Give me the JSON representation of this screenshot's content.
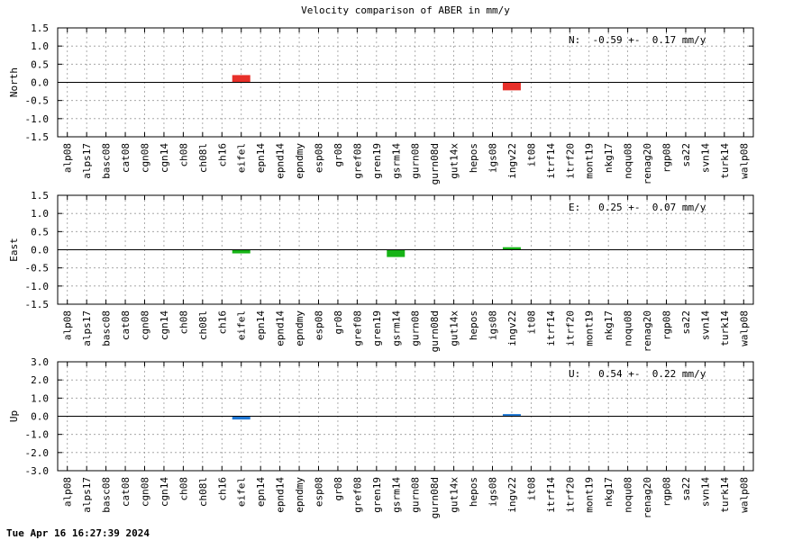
{
  "page": {
    "title": "Velocity comparison of ABER in mm/y",
    "timestamp": "Tue Apr 16 16:27:39 2024"
  },
  "chart_data": {
    "type": "bar",
    "categories": [
      "alp08",
      "alps17",
      "basc08",
      "cat08",
      "cgn08",
      "cgn14",
      "ch08",
      "ch08l",
      "ch16",
      "eifel",
      "epn14",
      "epnd14",
      "epndmy",
      "esp08",
      "gr08",
      "gref08",
      "gren19",
      "gsrm14",
      "gurn08",
      "gurn08d",
      "gut14x",
      "hepos",
      "igs08",
      "ingv22",
      "it08",
      "itrf14",
      "itrf20",
      "mont19",
      "nkg17",
      "noqu08",
      "renag20",
      "rgp08",
      "sa22",
      "svn14",
      "turk14",
      "walp08"
    ],
    "grid": true,
    "panels": [
      {
        "ylabel": "North",
        "ylim": [
          -1.5,
          1.5
        ],
        "yticks": [
          -1.5,
          -1.0,
          -0.5,
          0.0,
          0.5,
          1.0,
          1.5
        ],
        "ytick_labels": [
          "-1.5",
          "-1.0",
          "-0.5",
          "0.0",
          "0.5",
          "1.0",
          "1.5"
        ],
        "annotation": "N:  -0.59 +-  0.17 mm/y",
        "color": "#e8302a",
        "bars": [
          {
            "category": "eifel",
            "low": 0.0,
            "high": 0.2
          },
          {
            "category": "ingv22",
            "low": -0.22,
            "high": 0.0
          }
        ]
      },
      {
        "ylabel": "East",
        "ylim": [
          -1.5,
          1.5
        ],
        "yticks": [
          -1.5,
          -1.0,
          -0.5,
          0.0,
          0.5,
          1.0,
          1.5
        ],
        "ytick_labels": [
          "-1.5",
          "-1.0",
          "-0.5",
          "0.0",
          "0.5",
          "1.0",
          "1.5"
        ],
        "annotation": "E:   0.25 +-  0.07 mm/y",
        "color": "#16b316",
        "bars": [
          {
            "category": "eifel",
            "low": -0.1,
            "high": 0.0
          },
          {
            "category": "gsrm14",
            "low": -0.2,
            "high": 0.0
          },
          {
            "category": "ingv22",
            "low": 0.0,
            "high": 0.07
          }
        ]
      },
      {
        "ylabel": "Up",
        "ylim": [
          -3.0,
          3.0
        ],
        "yticks": [
          -3.0,
          -2.0,
          -1.0,
          0.0,
          1.0,
          2.0,
          3.0
        ],
        "ytick_labels": [
          "-3.0",
          "-2.0",
          "-1.0",
          "0.0",
          "1.0",
          "2.0",
          "3.0"
        ],
        "annotation": "U:   0.54 +-  0.22 mm/y",
        "color": "#1f77d4",
        "bars": [
          {
            "category": "eifel",
            "low": -0.18,
            "high": 0.0
          },
          {
            "category": "ingv22",
            "low": 0.0,
            "high": 0.12
          }
        ]
      }
    ]
  }
}
